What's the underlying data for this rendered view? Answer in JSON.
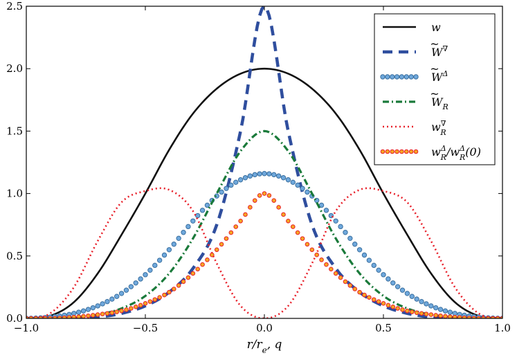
{
  "chart_data": {
    "type": "line",
    "title": "",
    "xlabel": "r/r_e, q",
    "ylabel": "",
    "xlim": [
      -1.0,
      1.0
    ],
    "ylim": [
      0.0,
      2.5
    ],
    "x_ticks": [
      "−1.0",
      "−0.5",
      "0.0",
      "0.5",
      "1.0"
    ],
    "x_tick_values": [
      -1.0,
      -0.5,
      0.0,
      0.5,
      1.0
    ],
    "y_ticks": [
      "0.0",
      "0.5",
      "1.0",
      "1.5",
      "2.0",
      "2.5"
    ],
    "y_tick_values": [
      0.0,
      0.5,
      1.0,
      1.5,
      2.0,
      2.5
    ],
    "grid": false,
    "legend_position": "top-right",
    "x": [
      -1.0,
      -0.9,
      -0.8,
      -0.7,
      -0.6,
      -0.5,
      -0.4,
      -0.3,
      -0.2,
      -0.1,
      0.0,
      0.1,
      0.2,
      0.3,
      0.4,
      0.5,
      0.6,
      0.7,
      0.8,
      0.9,
      1.0
    ],
    "series": [
      {
        "name": "w",
        "legend": {
          "base": "w",
          "tilde": false,
          "sup": "",
          "sub": "",
          "suffix": ""
        },
        "color": "#111111",
        "values": [
          0.0,
          0.02,
          0.13,
          0.36,
          0.67,
          1.0,
          1.35,
          1.64,
          1.84,
          1.96,
          2.0,
          1.96,
          1.84,
          1.64,
          1.35,
          1.0,
          0.67,
          0.36,
          0.13,
          0.02,
          0.0
        ]
      },
      {
        "name": "W~∇",
        "legend": {
          "base": "W",
          "tilde": true,
          "sup": "∇",
          "sub": "",
          "suffix": ""
        },
        "color": "#2f4e9e",
        "values": [
          0.0,
          0.0,
          0.0,
          0.01,
          0.04,
          0.1,
          0.21,
          0.4,
          0.75,
          1.5,
          2.5,
          1.5,
          0.75,
          0.4,
          0.21,
          0.1,
          0.04,
          0.01,
          0.0,
          0.0,
          0.0
        ]
      },
      {
        "name": "W~Δ",
        "legend": {
          "base": "W",
          "tilde": true,
          "sup": "Δ",
          "sub": "",
          "suffix": ""
        },
        "color": "#6fa8dc",
        "values": [
          0.0,
          0.01,
          0.04,
          0.1,
          0.2,
          0.35,
          0.55,
          0.78,
          0.98,
          1.11,
          1.16,
          1.11,
          0.98,
          0.78,
          0.55,
          0.35,
          0.2,
          0.1,
          0.04,
          0.01,
          0.0
        ]
      },
      {
        "name": "W~_R",
        "legend": {
          "base": "W",
          "tilde": true,
          "sup": "",
          "sub": "R",
          "suffix": ""
        },
        "color": "#1a7a3a",
        "values": [
          0.0,
          0.0,
          0.01,
          0.03,
          0.08,
          0.18,
          0.36,
          0.64,
          1.0,
          1.34,
          1.5,
          1.34,
          1.0,
          0.64,
          0.36,
          0.18,
          0.08,
          0.03,
          0.01,
          0.0,
          0.0
        ]
      },
      {
        "name": "w_R^∇",
        "legend": {
          "base": "w",
          "tilde": false,
          "sup": "∇",
          "sub": "R",
          "suffix": ""
        },
        "color": "#e8202a",
        "values": [
          0.0,
          0.04,
          0.25,
          0.62,
          0.93,
          1.02,
          1.03,
          0.86,
          0.44,
          0.1,
          0.0,
          0.1,
          0.44,
          0.86,
          1.03,
          1.02,
          0.93,
          0.62,
          0.25,
          0.04,
          0.0
        ]
      },
      {
        "name": "w_R^Δ/w_R^Δ(0)",
        "legend": {
          "base": "w",
          "tilde": false,
          "sup": "Δ",
          "sub": "R",
          "suffix": "/w_R^Δ(0)"
        },
        "color": "#e8202a",
        "fill": "#f5a623",
        "values": [
          0.0,
          0.0,
          0.01,
          0.03,
          0.06,
          0.12,
          0.21,
          0.36,
          0.55,
          0.78,
          1.0,
          0.78,
          0.55,
          0.36,
          0.21,
          0.12,
          0.06,
          0.03,
          0.01,
          0.0,
          0.0
        ]
      }
    ]
  }
}
